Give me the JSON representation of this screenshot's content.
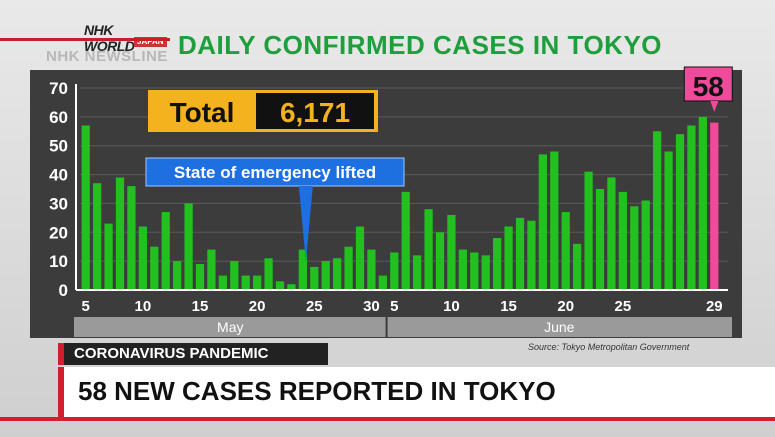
{
  "broadcast": {
    "logo_text": "NHK WORLD",
    "logo_sub": "JAPAN",
    "program": "NHK NEWSLINE",
    "headline": "58 NEW CASES REPORTED IN TOKYO",
    "topic_tag": "CORONAVIRUS PANDEMIC"
  },
  "colors": {
    "bar": "#22c11f",
    "highlight": "#f04a9a",
    "title": "#1e9e3c",
    "total_box": "#f5b21f",
    "callout": "#1e6fe0"
  },
  "chart_data": {
    "type": "bar",
    "title": "DAILY CONFIRMED CASES IN TOKYO",
    "ylim": [
      0,
      70
    ],
    "yticks": [
      0,
      10,
      20,
      30,
      40,
      50,
      60,
      70
    ],
    "grid": true,
    "x_tick_labels": [
      "5",
      "10",
      "15",
      "20",
      "25",
      "30",
      "5",
      "10",
      "15",
      "20",
      "25",
      "29"
    ],
    "months": [
      "May",
      "June"
    ],
    "values": [
      57,
      37,
      23,
      39,
      36,
      22,
      15,
      27,
      10,
      30,
      9,
      14,
      5,
      10,
      5,
      5,
      11,
      3,
      2,
      14,
      8,
      10,
      11,
      15,
      22,
      14,
      5,
      13,
      34,
      12,
      28,
      20,
      26,
      14,
      13,
      12,
      18,
      22,
      25,
      24,
      47,
      48,
      27,
      16,
      41,
      35,
      39,
      34,
      29,
      31,
      55,
      48,
      54,
      57,
      60,
      58
    ],
    "highlight_value": "58",
    "total_label": "Total",
    "total_value": "6,171",
    "annotation": "State of emergency lifted",
    "source": "Source: Tokyo Metropolitan Government"
  }
}
